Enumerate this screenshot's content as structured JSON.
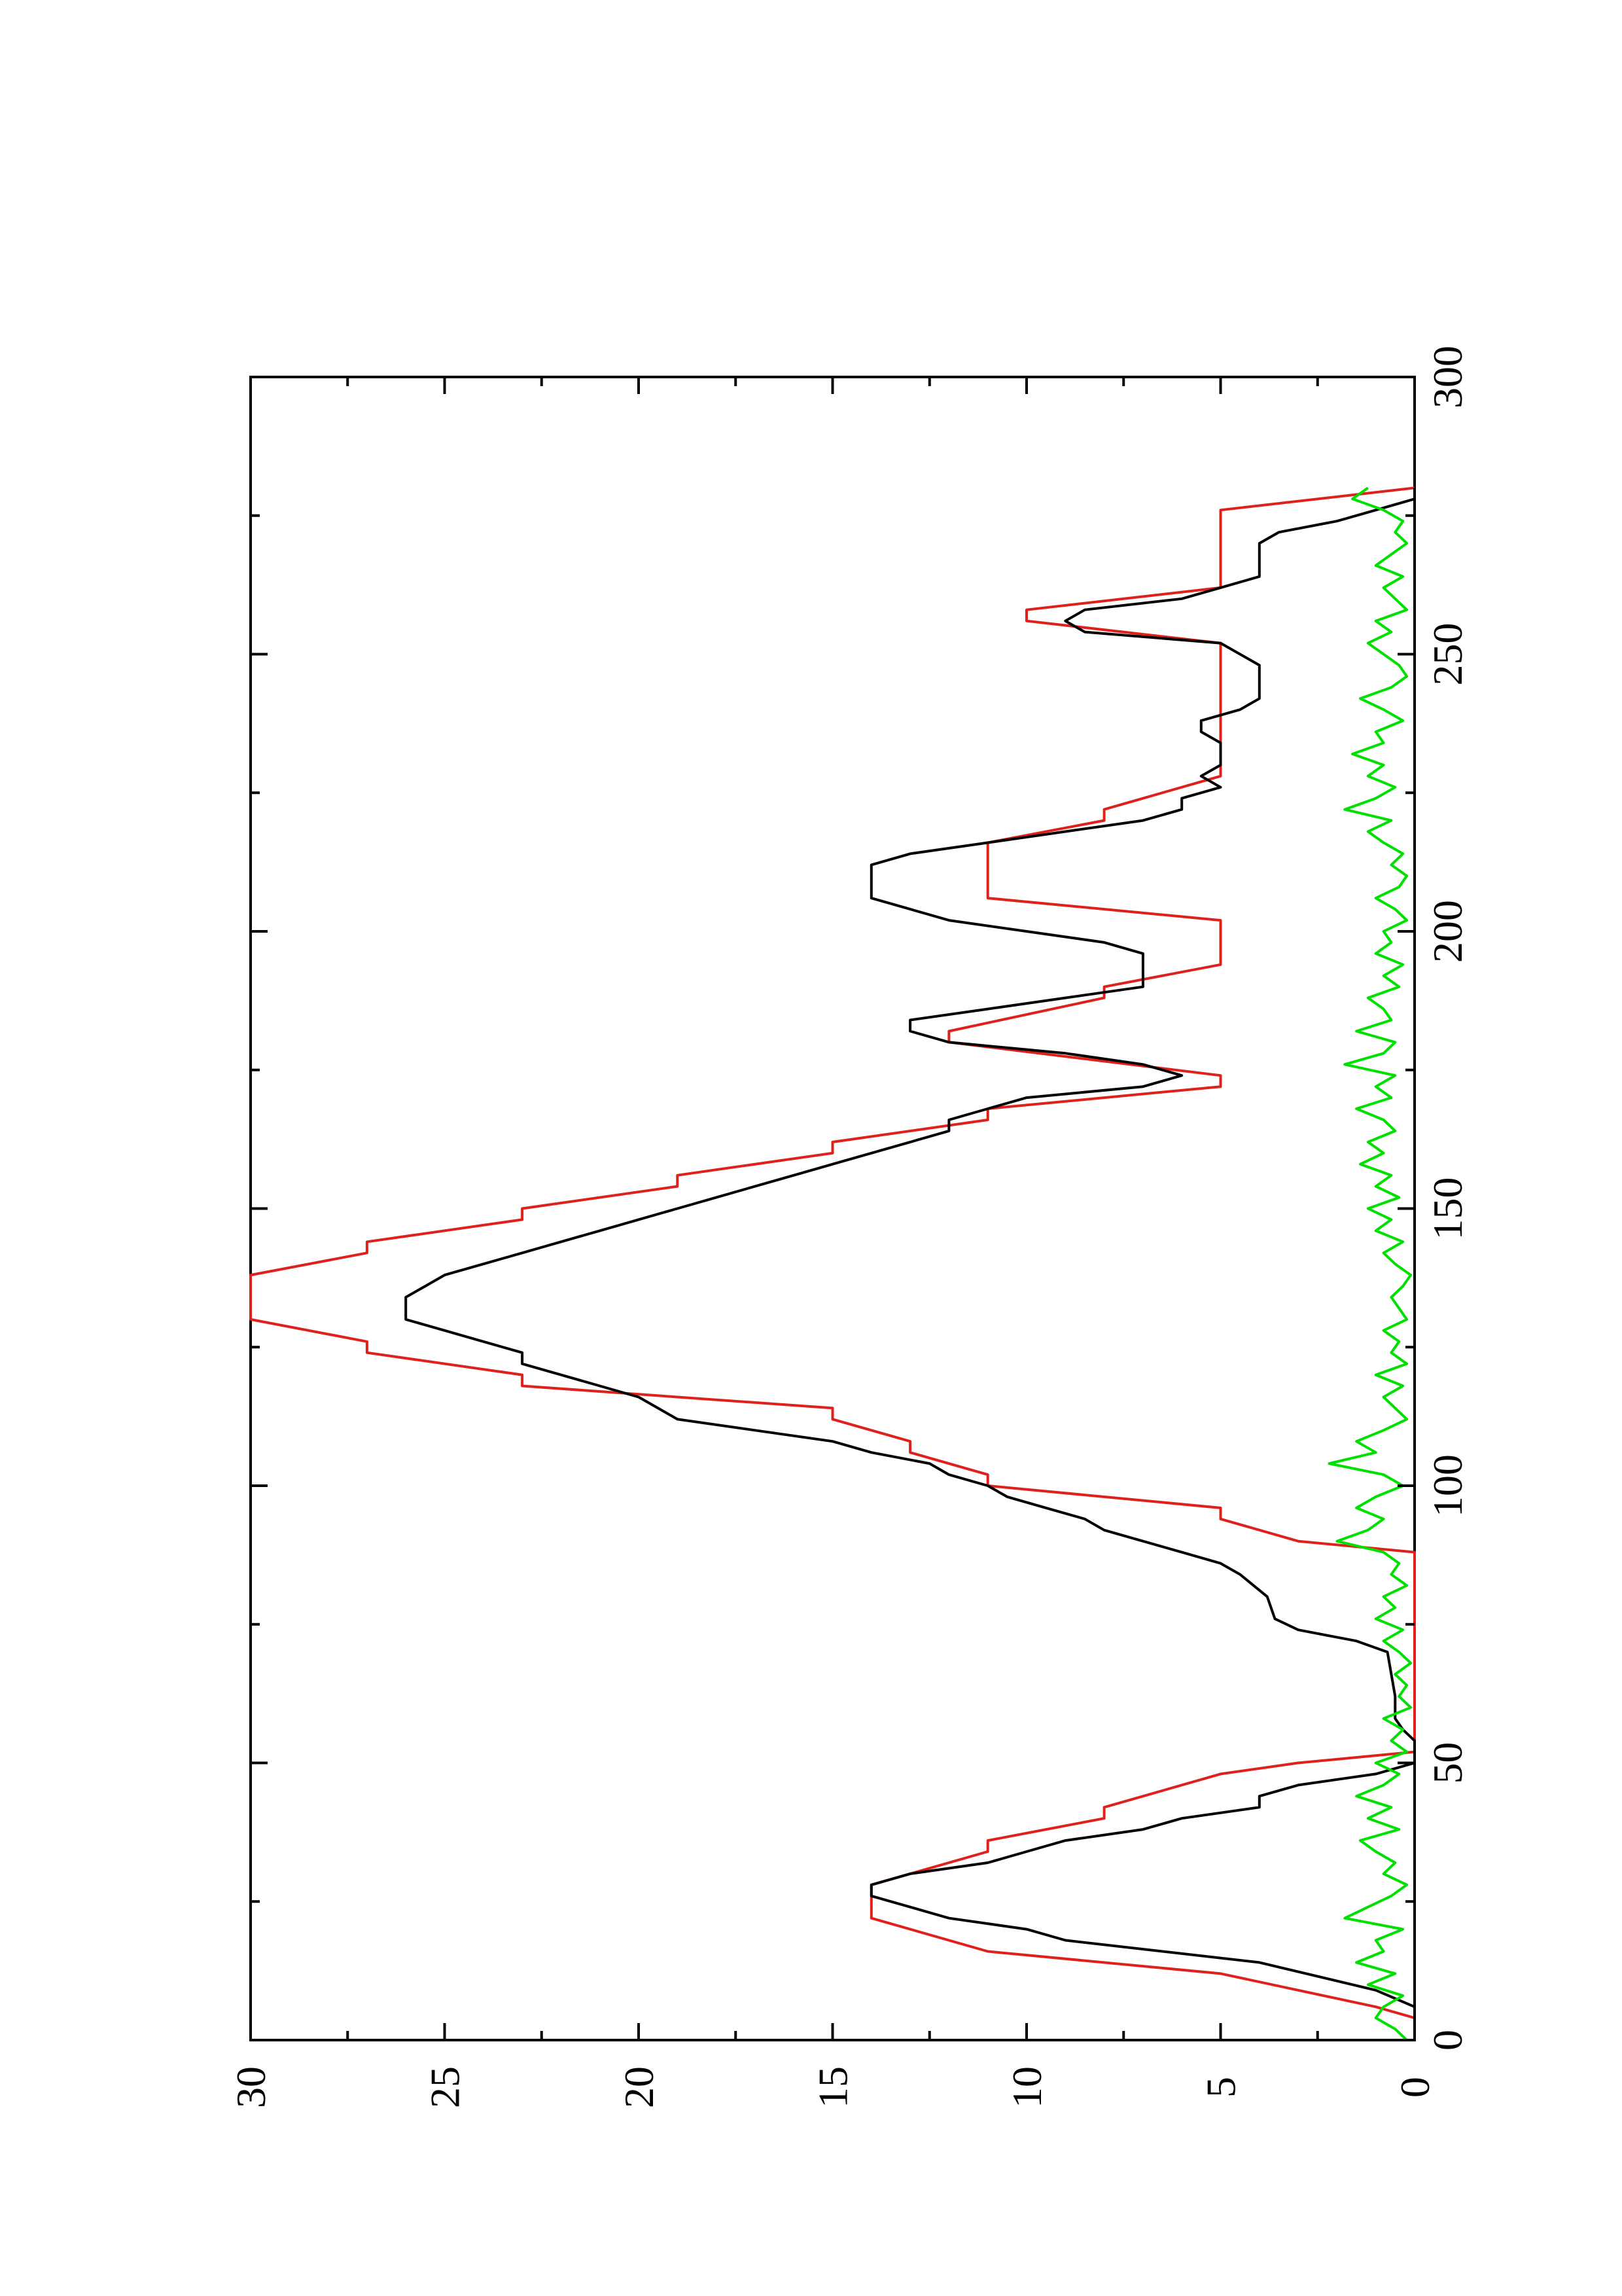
{
  "chart_data": {
    "type": "line",
    "title": "",
    "xlabel": "",
    "ylabel": "",
    "xlim": [
      0,
      300
    ],
    "ylim": [
      0,
      30
    ],
    "x_ticks": [
      "0",
      "50",
      "100",
      "150",
      "200",
      "250",
      "300"
    ],
    "y_ticks": [
      "0",
      "5",
      "10",
      "15",
      "20",
      "25",
      "30"
    ],
    "grid": false,
    "legend": false,
    "orientation": "rotated-90-counterclockwise",
    "series": [
      {
        "color": "#e0201b",
        "x": [
          0,
          4,
          6,
          12,
          16,
          22,
          24,
          26,
          28,
          34,
          36,
          40,
          42,
          48,
          50,
          52,
          58,
          64,
          70,
          76,
          82,
          88,
          90,
          94,
          96,
          100,
          102,
          106,
          108,
          112,
          114,
          118,
          120,
          124,
          126,
          130,
          132,
          136,
          138,
          142,
          144,
          148,
          150,
          154,
          156,
          160,
          162,
          166,
          168,
          172,
          174,
          180,
          182,
          188,
          190,
          194,
          196,
          200,
          202,
          206,
          208,
          214,
          216,
          220,
          222,
          228,
          234,
          240,
          246,
          250,
          252,
          256,
          258,
          262,
          264,
          268,
          270,
          274,
          276,
          280
        ],
        "y": [
          0,
          0,
          1,
          5,
          11,
          14,
          14,
          14,
          14,
          11,
          11,
          8,
          8,
          5,
          3,
          0,
          0,
          0,
          0,
          0,
          0,
          0,
          3,
          5,
          5,
          11,
          11,
          13,
          13,
          15,
          15,
          23,
          23,
          27,
          27,
          30,
          30,
          30,
          30,
          27,
          27,
          23,
          23,
          19,
          19,
          15,
          15,
          11,
          11,
          5,
          5,
          12,
          12,
          8,
          8,
          5,
          5,
          5,
          5,
          11,
          11,
          11,
          11,
          8,
          8,
          5,
          5,
          5,
          5,
          5,
          5,
          10,
          10,
          5,
          5,
          5,
          5,
          5,
          5,
          0
        ]
      },
      {
        "color": "#000000",
        "x": [
          0,
          6,
          9,
          14,
          18,
          20,
          22,
          24,
          26,
          28,
          30,
          32,
          34,
          36,
          38,
          40,
          42,
          44,
          46,
          48,
          50,
          52,
          54,
          56,
          58,
          62,
          66,
          70,
          72,
          74,
          76,
          80,
          84,
          86,
          88,
          90,
          92,
          94,
          96,
          98,
          100,
          102,
          104,
          106,
          108,
          110,
          112,
          114,
          116,
          118,
          120,
          122,
          124,
          126,
          128,
          130,
          132,
          134,
          136,
          138,
          140,
          142,
          144,
          146,
          148,
          150,
          152,
          154,
          156,
          158,
          160,
          162,
          164,
          166,
          168,
          170,
          172,
          174,
          176,
          178,
          180,
          182,
          184,
          186,
          188,
          190,
          192,
          194,
          196,
          198,
          200,
          202,
          204,
          206,
          208,
          210,
          212,
          214,
          216,
          218,
          220,
          222,
          224,
          226,
          228,
          230,
          232,
          234,
          236,
          238,
          240,
          242,
          244,
          246,
          248,
          250,
          252,
          254,
          256,
          258,
          260,
          262,
          264,
          266,
          268,
          270,
          272,
          274,
          276,
          278,
          280
        ],
        "y": [
          0,
          0,
          1,
          4,
          9,
          10,
          12,
          13,
          14,
          14,
          13,
          11,
          10,
          9,
          7,
          6,
          4,
          4,
          3,
          1,
          0,
          0,
          0,
          0.3,
          0.5,
          0.5,
          0.6,
          0.7,
          1.5,
          3,
          3.6,
          3.8,
          4.5,
          5,
          6,
          7,
          8,
          8.5,
          9.5,
          10.5,
          11,
          12,
          12.5,
          14,
          15,
          17,
          19,
          19.5,
          20,
          21,
          22,
          23,
          23,
          24,
          25,
          26,
          26,
          26,
          25.5,
          25,
          24,
          23,
          22,
          21,
          20,
          19,
          18,
          17,
          16,
          15,
          14,
          13,
          12,
          12,
          11,
          10,
          7,
          6,
          7,
          9,
          12,
          13,
          13,
          11,
          9,
          7,
          7,
          7,
          7,
          8,
          10,
          12,
          13,
          14,
          14,
          14,
          14,
          13,
          11,
          9,
          7,
          6,
          6,
          5,
          5.5,
          5,
          5,
          5,
          5.5,
          5.5,
          4.5,
          4,
          4,
          4,
          4,
          4.5,
          5,
          8.5,
          9,
          8.5,
          6,
          5,
          4,
          4,
          4,
          4,
          3.5,
          2,
          1,
          0,
          0
        ]
      },
      {
        "color": "#00e000",
        "x": [
          0,
          2,
          4,
          6,
          8,
          10,
          12,
          14,
          16,
          18,
          20,
          22,
          24,
          26,
          28,
          30,
          32,
          34,
          36,
          38,
          40,
          42,
          44,
          46,
          48,
          50,
          52,
          54,
          56,
          58,
          60,
          62,
          64,
          66,
          68,
          70,
          72,
          74,
          76,
          78,
          80,
          82,
          84,
          86,
          88,
          90,
          92,
          94,
          96,
          98,
          100,
          102,
          104,
          106,
          108,
          110,
          112,
          114,
          116,
          118,
          120,
          122,
          124,
          126,
          128,
          130,
          132,
          134,
          136,
          138,
          140,
          142,
          144,
          146,
          148,
          150,
          152,
          154,
          156,
          158,
          160,
          162,
          164,
          166,
          168,
          170,
          172,
          174,
          176,
          178,
          180,
          182,
          184,
          186,
          188,
          190,
          192,
          194,
          196,
          198,
          200,
          202,
          204,
          206,
          208,
          210,
          212,
          214,
          216,
          218,
          220,
          222,
          224,
          226,
          228,
          230,
          232,
          234,
          236,
          238,
          240,
          242,
          244,
          246,
          248,
          250,
          252,
          254,
          256,
          258,
          260,
          262,
          264,
          266,
          268,
          270,
          272,
          274,
          276,
          278,
          280
        ],
        "y": [
          0.2,
          0.5,
          1.0,
          0.8,
          0.3,
          1.2,
          0.5,
          1.5,
          0.8,
          1.0,
          0.3,
          1.8,
          1.2,
          0.6,
          0.2,
          0.8,
          0.5,
          1.0,
          1.4,
          0.4,
          1.2,
          0.6,
          1.5,
          0.8,
          0.4,
          1.0,
          0.2,
          0.6,
          0.3,
          0.8,
          0.1,
          0.4,
          0.2,
          0.5,
          0.1,
          0.4,
          0.8,
          0.3,
          1.0,
          0.5,
          0.8,
          0.2,
          0.6,
          0.4,
          0.8,
          2.0,
          1.2,
          0.8,
          1.5,
          1.0,
          0.3,
          0.8,
          2.2,
          1.0,
          1.5,
          0.8,
          0.2,
          0.5,
          0.8,
          0.3,
          1.0,
          0.2,
          0.6,
          0.4,
          0.8,
          0.2,
          0.4,
          0.6,
          0.3,
          0.1,
          0.5,
          0.8,
          0.3,
          1.0,
          0.6,
          1.2,
          0.4,
          1.0,
          0.6,
          1.4,
          0.8,
          1.2,
          0.5,
          0.8,
          1.5,
          0.6,
          1.0,
          0.5,
          1.8,
          0.8,
          0.5,
          1.5,
          0.6,
          0.8,
          1.2,
          0.4,
          0.8,
          0.3,
          1.0,
          0.6,
          0.8,
          0.2,
          0.5,
          1.0,
          0.4,
          0.2,
          0.6,
          0.3,
          0.8,
          1.2,
          0.6,
          1.8,
          1.0,
          0.5,
          1.2,
          0.8,
          1.6,
          0.8,
          1.0,
          0.3,
          0.8,
          1.4,
          0.6,
          0.2,
          0.4,
          0.8,
          1.2,
          0.6,
          1.0,
          0.2,
          0.5,
          0.8,
          0.3,
          1.0,
          0.6,
          0.2,
          0.5,
          0.3,
          0.8,
          1.6,
          1.2
        ]
      }
    ]
  }
}
